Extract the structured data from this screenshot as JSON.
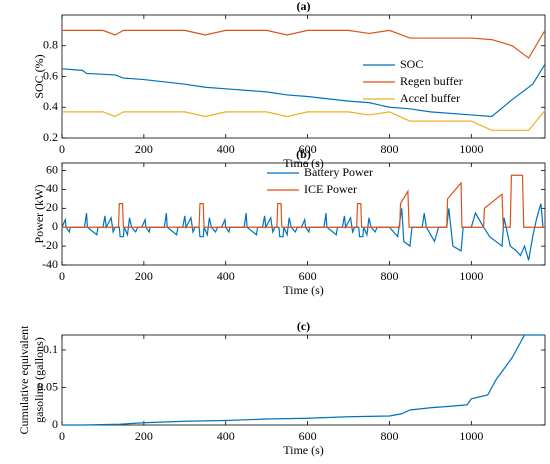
{
  "chart_data": [
    {
      "type": "line",
      "title": "(a)",
      "xlabel": "Time (s)",
      "ylabel": [
        "SOC (%)"
      ],
      "xlim": [
        0,
        1180
      ],
      "ylim": [
        0.2,
        1.0
      ],
      "xticks": [
        0,
        200,
        400,
        600,
        800,
        1000
      ],
      "yticks": [
        0.2,
        0.4,
        0.6,
        0.8
      ],
      "legend": "right",
      "grid": false,
      "series": [
        {
          "name": "SOC",
          "color": "#0072BD",
          "x": [
            0,
            50,
            60,
            130,
            150,
            200,
            300,
            350,
            400,
            500,
            550,
            600,
            700,
            750,
            800,
            850,
            900,
            1000,
            1050,
            1100,
            1150,
            1180
          ],
          "values": [
            0.65,
            0.64,
            0.62,
            0.61,
            0.59,
            0.58,
            0.55,
            0.53,
            0.52,
            0.5,
            0.48,
            0.47,
            0.44,
            0.43,
            0.4,
            0.39,
            0.37,
            0.35,
            0.34,
            0.45,
            0.55,
            0.68
          ]
        },
        {
          "name": "Regen buffer",
          "color": "#D95319",
          "x": [
            0,
            100,
            130,
            150,
            200,
            300,
            350,
            400,
            500,
            550,
            600,
            700,
            750,
            800,
            830,
            850,
            1000,
            1050,
            1100,
            1140,
            1180
          ],
          "values": [
            0.9,
            0.9,
            0.87,
            0.9,
            0.9,
            0.9,
            0.87,
            0.9,
            0.9,
            0.87,
            0.9,
            0.9,
            0.88,
            0.9,
            0.87,
            0.85,
            0.85,
            0.84,
            0.8,
            0.72,
            0.9
          ]
        },
        {
          "name": "Accel buffer",
          "color": "#EDB120",
          "x": [
            0,
            100,
            130,
            150,
            200,
            300,
            350,
            400,
            500,
            550,
            600,
            700,
            750,
            800,
            850,
            900,
            1000,
            1050,
            1100,
            1140,
            1180
          ],
          "values": [
            0.37,
            0.37,
            0.34,
            0.37,
            0.37,
            0.37,
            0.34,
            0.37,
            0.37,
            0.34,
            0.37,
            0.37,
            0.35,
            0.37,
            0.31,
            0.31,
            0.31,
            0.25,
            0.25,
            0.25,
            0.38
          ]
        }
      ]
    },
    {
      "type": "line",
      "title": "(b)",
      "xlabel": "Time (s)",
      "ylabel": [
        "Power (kW)"
      ],
      "xlim": [
        0,
        1180
      ],
      "ylim": [
        -40,
        68
      ],
      "xticks": [
        0,
        200,
        400,
        600,
        800,
        1000
      ],
      "yticks": [
        -40,
        -20,
        0,
        20,
        40,
        60
      ],
      "legend": "top",
      "grid": false,
      "series": [
        {
          "name": "Battery Power",
          "color": "#0072BD",
          "x": [
            0,
            8,
            10,
            18,
            20,
            55,
            60,
            62,
            85,
            88,
            100,
            105,
            108,
            120,
            125,
            130,
            140,
            142,
            150,
            152,
            160,
            165,
            170,
            180,
            185,
            195,
            203,
            205,
            213,
            215,
            250,
            255,
            257,
            280,
            283,
            295,
            300,
            303,
            315,
            320,
            325,
            335,
            337,
            345,
            347,
            355,
            360,
            365,
            375,
            380,
            390,
            398,
            400,
            408,
            410,
            445,
            450,
            452,
            475,
            478,
            490,
            495,
            498,
            510,
            515,
            520,
            530,
            532,
            540,
            542,
            550,
            555,
            560,
            570,
            575,
            585,
            593,
            595,
            603,
            605,
            640,
            645,
            647,
            670,
            673,
            685,
            690,
            693,
            705,
            710,
            715,
            725,
            727,
            735,
            737,
            745,
            750,
            755,
            765,
            770,
            800,
            820,
            830,
            835,
            850,
            855,
            880,
            885,
            890,
            910,
            920,
            940,
            945,
            955,
            975,
            980,
            1000,
            1010,
            1030,
            1045,
            1075,
            1080,
            1095,
            1110,
            1120,
            1130,
            1140,
            1150,
            1160,
            1170,
            1175
          ],
          "values": [
            0,
            8,
            0,
            -5,
            0,
            0,
            15,
            0,
            -8,
            0,
            0,
            12,
            0,
            10,
            -5,
            0,
            0,
            -10,
            -10,
            0,
            -8,
            10,
            0,
            -5,
            0,
            0,
            8,
            0,
            -5,
            0,
            0,
            15,
            0,
            -8,
            0,
            0,
            12,
            0,
            10,
            -5,
            0,
            0,
            -10,
            -10,
            0,
            -8,
            10,
            0,
            -5,
            0,
            0,
            8,
            0,
            -5,
            0,
            0,
            15,
            0,
            -8,
            0,
            0,
            12,
            0,
            10,
            -5,
            0,
            0,
            -10,
            -10,
            0,
            -8,
            10,
            0,
            -5,
            0,
            0,
            8,
            0,
            -5,
            0,
            0,
            15,
            0,
            -8,
            0,
            0,
            12,
            0,
            10,
            -5,
            0,
            0,
            -10,
            -10,
            0,
            -8,
            10,
            0,
            -5,
            0,
            0,
            -10,
            20,
            -15,
            -20,
            0,
            0,
            15,
            0,
            -15,
            0,
            0,
            20,
            -20,
            -25,
            0,
            0,
            15,
            0,
            -10,
            -20,
            10,
            -20,
            -25,
            -30,
            -20,
            -35,
            -10,
            10,
            25,
            0
          ]
        },
        {
          "name": "ICE Power",
          "color": "#D95319",
          "x": [
            0,
            138,
            140,
            148,
            150,
            335,
            337,
            345,
            347,
            525,
            527,
            535,
            537,
            720,
            722,
            730,
            732,
            825,
            827,
            845,
            848,
            940,
            942,
            975,
            977,
            1030,
            1032,
            1075,
            1078,
            1095,
            1098,
            1125,
            1128,
            1180
          ],
          "values": [
            0,
            0,
            25,
            25,
            0,
            0,
            25,
            25,
            0,
            0,
            25,
            25,
            0,
            0,
            25,
            25,
            0,
            0,
            25,
            38,
            0,
            0,
            30,
            47,
            0,
            0,
            20,
            35,
            0,
            0,
            55,
            55,
            0,
            0
          ]
        }
      ]
    },
    {
      "type": "line",
      "title": "(c)",
      "xlabel": "Time (s)",
      "ylabel": [
        "Cumulative equivalent",
        "gasoline (gallons)"
      ],
      "xlim": [
        0,
        1180
      ],
      "ylim": [
        0,
        0.12
      ],
      "xticks": [
        0,
        200,
        400,
        600,
        800,
        1000
      ],
      "yticks": [
        0,
        0.05,
        0.1
      ],
      "grid": false,
      "series": [
        {
          "color": "#0072BD",
          "x": [
            0,
            50,
            140,
            200,
            300,
            400,
            500,
            600,
            700,
            800,
            830,
            850,
            900,
            950,
            990,
            1000,
            1040,
            1060,
            1080,
            1100,
            1130,
            1180
          ],
          "values": [
            0,
            0,
            0.001,
            0.003,
            0.005,
            0.006,
            0.008,
            0.009,
            0.011,
            0.012,
            0.015,
            0.02,
            0.023,
            0.025,
            0.027,
            0.035,
            0.04,
            0.06,
            0.075,
            0.09,
            0.12,
            0.12
          ]
        }
      ]
    }
  ]
}
